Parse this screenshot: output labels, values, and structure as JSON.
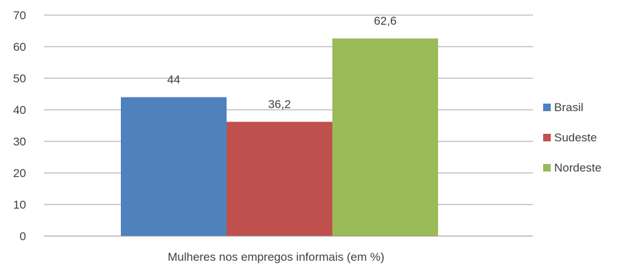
{
  "chart_data": {
    "type": "bar",
    "categories": [
      "Mulheres nos empregos informais (em %)"
    ],
    "series": [
      {
        "name": "Brasil",
        "values": [
          44
        ],
        "data_label": "44",
        "color": "#4f81bd"
      },
      {
        "name": "Sudeste",
        "values": [
          36.2
        ],
        "data_label": "36,2",
        "color": "#c0504d"
      },
      {
        "name": "Nordeste",
        "values": [
          62.6
        ],
        "data_label": "62,6",
        "color": "#9bbb59"
      }
    ],
    "ylim": [
      0,
      70
    ],
    "yticks": [
      "0",
      "10",
      "20",
      "30",
      "40",
      "50",
      "60",
      "70"
    ],
    "grid": true,
    "legend_position": "right",
    "gridline_color": "#9c9c9c"
  }
}
